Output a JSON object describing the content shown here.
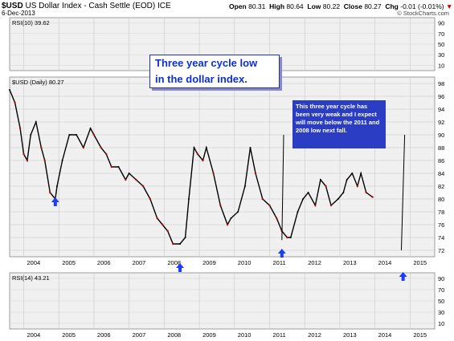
{
  "header": {
    "symbol": "$USD",
    "name": "US Dollar Index - Cash Settle (EOD)",
    "exchange": "ICE",
    "date": "6-Dec-2013",
    "open_label": "Open",
    "open": "80.31",
    "high_label": "High",
    "high": "80.64",
    "low_label": "Low",
    "low": "80.22",
    "close_label": "Close",
    "close": "80.27",
    "chg_label": "Chg",
    "chg": "-0.01 (-0.01%)",
    "watermark": "© StockCharts.com"
  },
  "panels": {
    "rsi_top_label": "RSI(10) 39.62",
    "price_label": "$USD (Daily) 80.27",
    "rsi_bottom_label": "RSI(14) 43.21"
  },
  "annotations": {
    "callout_main": [
      "Three year cycle low",
      "in the dollar index."
    ],
    "callout_note": "This three year cycle has been very weak and I expect will move below the 2011 and 2008 low next fall."
  },
  "colors": {
    "accent": "#0b2fd6",
    "arrow": "#1a3cff",
    "callout_bg": "#2b3dc2",
    "panel_bg": "#f0f0f0",
    "price": "#000000",
    "down_tick": "#cc0000"
  },
  "chart_data": {
    "type": "line",
    "title": "US Dollar Index - Cash Settle (EOD)",
    "x_ticks": [
      "2004",
      "2005",
      "2006",
      "2007",
      "2008",
      "2009",
      "2010",
      "2011",
      "2012",
      "2013",
      "2014",
      "2015"
    ],
    "y_ticks_price": [
      72,
      74,
      76,
      78,
      80,
      82,
      84,
      86,
      88,
      90,
      92,
      94,
      96,
      98
    ],
    "y_ticks_rsi": [
      10,
      30,
      50,
      70,
      90
    ],
    "ylim": [
      71,
      99
    ],
    "xlim": [
      2003.6,
      2015.7
    ],
    "series": [
      {
        "name": "$USD (Daily)",
        "x": [
          2003.6,
          2003.75,
          2003.9,
          2004.0,
          2004.1,
          2004.2,
          2004.35,
          2004.5,
          2004.6,
          2004.75,
          2004.9,
          2004.95,
          2005.1,
          2005.3,
          2005.5,
          2005.7,
          2005.9,
          2006.0,
          2006.2,
          2006.35,
          2006.5,
          2006.7,
          2006.9,
          2007.0,
          2007.2,
          2007.4,
          2007.6,
          2007.8,
          2007.95,
          2008.1,
          2008.25,
          2008.45,
          2008.6,
          2008.7,
          2008.85,
          2008.95,
          2009.1,
          2009.2,
          2009.4,
          2009.6,
          2009.8,
          2009.9,
          2010.1,
          2010.3,
          2010.45,
          2010.6,
          2010.8,
          2011.0,
          2011.2,
          2011.35,
          2011.5,
          2011.6,
          2011.8,
          2011.95,
          2012.1,
          2012.3,
          2012.45,
          2012.6,
          2012.75,
          2012.95,
          2013.1,
          2013.2,
          2013.35,
          2013.5,
          2013.6,
          2013.75,
          2013.93
        ],
        "y": [
          97,
          95,
          91,
          87,
          86,
          90,
          92,
          88,
          86,
          81,
          80,
          82,
          86,
          90,
          90,
          88,
          91,
          90,
          88,
          87,
          85,
          85,
          83,
          84,
          83,
          82,
          80,
          77,
          76,
          75,
          73,
          73,
          74,
          80,
          88,
          87,
          86,
          88,
          84,
          79,
          76,
          77,
          78,
          82,
          88,
          84,
          80,
          79,
          77,
          75,
          74,
          74,
          78,
          80,
          81,
          79,
          83,
          82,
          79,
          80,
          81,
          83,
          84,
          82,
          84,
          81,
          80.3
        ]
      }
    ],
    "arrows_up_at": [
      2004.9,
      2008.45,
      2011.35,
      2014.8
    ],
    "projection": {
      "from": [
        2013.93,
        80.3
      ],
      "to": [
        2014.75,
        72
      ],
      "peak_note_line": [
        2011.4,
        90
      ]
    }
  }
}
